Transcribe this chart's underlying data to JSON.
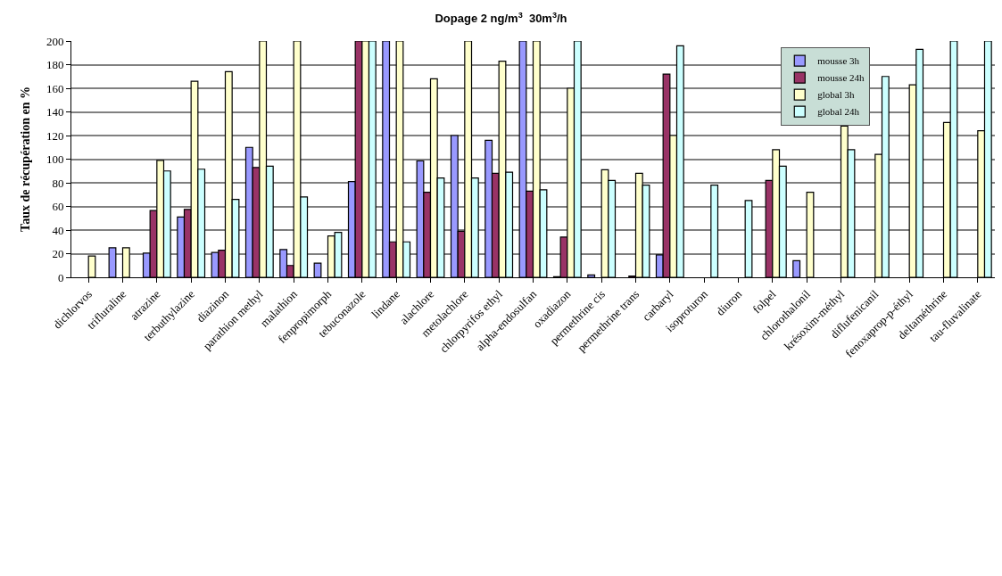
{
  "chart_data": {
    "type": "bar",
    "title": "Dopage 2 ng/m$^{3}$  30m$^{3}$/h",
    "ylabel": "Taux de récupération en %",
    "categories": [
      "dichlorvos",
      "trifluraline",
      "atrazine",
      "terbuthylazine",
      "diazinon",
      "parathion methyl",
      "malathion",
      "fenpropimorph",
      "tebuconazole",
      "lindane",
      "alachlore",
      "metolachlore",
      "chlorpyrifos ethyl",
      "alpha-endosulfan",
      "oxadiazon",
      "permethrine cis",
      "permethrine trans",
      "carbaryl",
      "isoproturon",
      "diuron",
      "folpel",
      "chlorothalonil",
      "krésoxim-méthyl",
      "diflufenicanil",
      "fenoxaprop-p-éthyl",
      "deltaméthrine",
      "tau-fluvalinate"
    ],
    "series": [
      {
        "name": "mousse 3h",
        "color": "#9999ff",
        "values": [
          null,
          25,
          20.5,
          51,
          21,
          110,
          23.5,
          12,
          81,
          200,
          98.5,
          120,
          116,
          200,
          0.5,
          2,
          null,
          19,
          null,
          null,
          null,
          14,
          null,
          null,
          null,
          null,
          null
        ]
      },
      {
        "name": "mousse 24h",
        "color": "#993366",
        "values": [
          null,
          null,
          56.5,
          57.5,
          23,
          93,
          10,
          null,
          200,
          30,
          72,
          39,
          88,
          73,
          34,
          null,
          1,
          172,
          null,
          null,
          82,
          null,
          null,
          null,
          null,
          null,
          null
        ]
      },
      {
        "name": "global 3h",
        "color": "#ffffcc",
        "values": [
          18,
          25,
          99,
          166,
          174,
          200,
          200,
          35,
          200,
          200,
          168,
          200,
          183,
          200,
          160,
          91,
          88,
          120,
          null,
          null,
          108,
          72,
          128,
          104,
          163,
          131,
          124
        ]
      },
      {
        "name": "global 24h",
        "color": "#ccffff",
        "values": [
          null,
          null,
          90,
          91.5,
          66,
          94,
          68,
          38,
          200,
          30,
          84,
          84,
          89,
          74,
          200,
          82,
          78,
          196,
          78,
          65,
          94,
          null,
          108,
          170,
          193,
          200,
          200
        ]
      }
    ],
    "ylim": [
      0,
      200
    ],
    "yticks": [
      0,
      20,
      40,
      60,
      80,
      100,
      120,
      140,
      160,
      180,
      200
    ],
    "grid": "y",
    "legend": "top right"
  }
}
